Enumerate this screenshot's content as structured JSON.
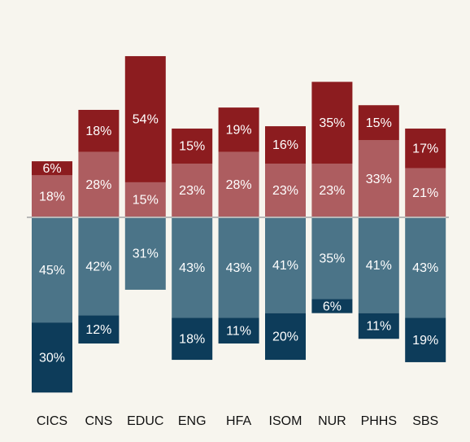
{
  "chart_data": {
    "type": "diverging-stacked-bar",
    "categories": [
      "CICS",
      "CNS",
      "EDUC",
      "ENG",
      "HFA",
      "ISOM",
      "NUR",
      "PHHS",
      "SBS"
    ],
    "series": [
      {
        "color": "#8c1c1f",
        "values": [
          6,
          18,
          54,
          15,
          19,
          16,
          35,
          15,
          17
        ],
        "value_labels": [
          "6%",
          "18%",
          "54%",
          "15%",
          "19%",
          "16%",
          "35%",
          "15%",
          "17%"
        ]
      },
      {
        "color": "#ad5d60",
        "values": [
          18,
          28,
          15,
          23,
          28,
          23,
          23,
          33,
          21
        ],
        "value_labels": [
          "18%",
          "28%",
          "15%",
          "23%",
          "28%",
          "23%",
          "23%",
          "33%",
          "21%"
        ]
      },
      {
        "color": "#4b7488",
        "values": [
          45,
          42,
          31,
          43,
          43,
          41,
          35,
          41,
          43
        ],
        "value_labels": [
          "45%",
          "42%",
          "31%",
          "43%",
          "43%",
          "41%",
          "35%",
          "41%",
          "43%"
        ]
      },
      {
        "color": "#0d3c5a",
        "values": [
          30,
          12,
          null,
          18,
          11,
          20,
          6,
          11,
          19
        ],
        "value_labels": [
          "30%",
          "12%",
          null,
          "18%",
          "11%",
          "20%",
          "6%",
          "11%",
          "19%"
        ]
      }
    ]
  }
}
